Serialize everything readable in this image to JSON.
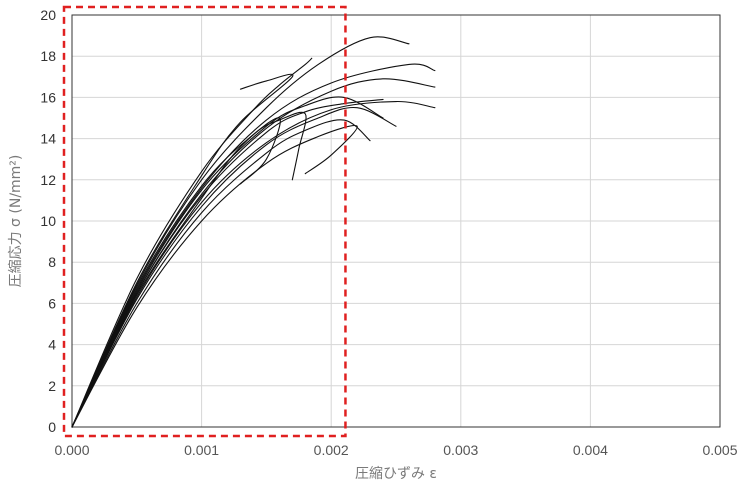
{
  "chart_data": {
    "type": "line",
    "title": "",
    "xlabel": "圧縮ひずみ ε",
    "ylabel": "圧縮応力 σ (N/mm²)",
    "xlim": [
      0,
      0.005
    ],
    "ylim": [
      0,
      20
    ],
    "x_ticks": [
      "0.000",
      "0.001",
      "0.002",
      "0.003",
      "0.004",
      "0.005"
    ],
    "y_ticks": [
      "0",
      "2",
      "4",
      "6",
      "8",
      "10",
      "12",
      "14",
      "16",
      "18",
      "20"
    ],
    "grid": true,
    "legend": "none",
    "highlight_region": {
      "x": [
        0,
        0.00211
      ],
      "y": [
        0,
        20
      ],
      "color": "#e02020",
      "style": "dashed"
    },
    "series": [
      {
        "peak_strain": 0.0018,
        "peak_stress": 17.6,
        "end_strain": 0.00185,
        "end_stress": 17.9,
        "points": [
          [
            0,
            0
          ],
          [
            0.0005,
            7.2
          ],
          [
            0.001,
            12.4
          ],
          [
            0.0014,
            15.4
          ],
          [
            0.0016,
            16.6
          ],
          [
            0.0018,
            17.6
          ],
          [
            0.00185,
            17.9
          ]
        ]
      },
      {
        "peak_strain": 0.0023,
        "peak_stress": 18.9,
        "end_strain": 0.0026,
        "end_stress": 18.6,
        "points": [
          [
            0,
            0
          ],
          [
            0.0005,
            6.9
          ],
          [
            0.001,
            12.0
          ],
          [
            0.0015,
            15.5
          ],
          [
            0.0019,
            17.6
          ],
          [
            0.0023,
            18.9
          ],
          [
            0.0026,
            18.6
          ]
        ]
      },
      {
        "peak_strain": 0.0026,
        "peak_stress": 17.6,
        "end_strain": 0.0028,
        "end_stress": 17.3,
        "points": [
          [
            0,
            0
          ],
          [
            0.0005,
            6.7
          ],
          [
            0.001,
            11.6
          ],
          [
            0.0015,
            14.9
          ],
          [
            0.002,
            16.7
          ],
          [
            0.0026,
            17.6
          ],
          [
            0.0028,
            17.3
          ]
        ]
      },
      {
        "peak_strain": 0.0024,
        "peak_stress": 16.9,
        "end_strain": 0.0028,
        "end_stress": 16.5,
        "points": [
          [
            0,
            0
          ],
          [
            0.0005,
            6.5
          ],
          [
            0.001,
            11.3
          ],
          [
            0.0015,
            14.5
          ],
          [
            0.002,
            16.3
          ],
          [
            0.0024,
            16.9
          ],
          [
            0.0028,
            16.5
          ]
        ]
      },
      {
        "peak_strain": 0.0021,
        "peak_stress": 16.0,
        "end_strain": 0.0024,
        "end_stress": 15.0,
        "points": [
          [
            0,
            0
          ],
          [
            0.0005,
            6.6
          ],
          [
            0.001,
            11.5
          ],
          [
            0.0015,
            14.6
          ],
          [
            0.0018,
            15.6
          ],
          [
            0.0021,
            16.0
          ],
          [
            0.0024,
            15.0
          ]
        ]
      },
      {
        "peak_strain": 0.0025,
        "peak_stress": 15.8,
        "end_strain": 0.0028,
        "end_stress": 15.5,
        "points": [
          [
            0,
            0
          ],
          [
            0.0005,
            6.3
          ],
          [
            0.001,
            10.9
          ],
          [
            0.0015,
            13.8
          ],
          [
            0.002,
            15.4
          ],
          [
            0.0025,
            15.8
          ],
          [
            0.0028,
            15.5
          ]
        ]
      },
      {
        "peak_strain": 0.0022,
        "peak_stress": 15.5,
        "end_strain": 0.0025,
        "end_stress": 14.6,
        "points": [
          [
            0,
            0
          ],
          [
            0.0005,
            6.2
          ],
          [
            0.001,
            10.7
          ],
          [
            0.0015,
            13.7
          ],
          [
            0.0019,
            15.0
          ],
          [
            0.0022,
            15.5
          ],
          [
            0.0025,
            14.6
          ]
        ]
      },
      {
        "peak_strain": 0.0021,
        "peak_stress": 14.9,
        "end_strain": 0.0023,
        "end_stress": 13.9,
        "points": [
          [
            0,
            0
          ],
          [
            0.0005,
            6.0
          ],
          [
            0.001,
            10.4
          ],
          [
            0.0015,
            13.3
          ],
          [
            0.0018,
            14.4
          ],
          [
            0.0021,
            14.9
          ],
          [
            0.0023,
            13.9
          ]
        ]
      },
      {
        "peak_strain": 0.0018,
        "peak_stress": 15.2,
        "end_strain": 0.0017,
        "end_stress": 12.0,
        "points": [
          [
            0,
            0
          ],
          [
            0.0005,
            6.8
          ],
          [
            0.001,
            11.7
          ],
          [
            0.0014,
            14.2
          ],
          [
            0.0016,
            14.9
          ],
          [
            0.0018,
            15.2
          ],
          [
            0.00175,
            13.5
          ],
          [
            0.0017,
            12.0
          ]
        ]
      },
      {
        "peak_strain": 0.0016,
        "peak_stress": 15.0,
        "end_strain": 0.0013,
        "end_stress": 11.8,
        "points": [
          [
            0,
            0
          ],
          [
            0.0005,
            6.4
          ],
          [
            0.001,
            11.1
          ],
          [
            0.0013,
            13.6
          ],
          [
            0.0016,
            15.0
          ],
          [
            0.0015,
            13.0
          ],
          [
            0.0013,
            11.8
          ]
        ]
      },
      {
        "peak_strain": 0.0022,
        "peak_stress": 14.6,
        "end_strain": 0.0018,
        "end_stress": 12.3,
        "points": [
          [
            0,
            0
          ],
          [
            0.0005,
            5.8
          ],
          [
            0.001,
            10.0
          ],
          [
            0.0015,
            12.8
          ],
          [
            0.0019,
            14.1
          ],
          [
            0.0022,
            14.6
          ],
          [
            0.002,
            13.2
          ],
          [
            0.0018,
            12.3
          ]
        ]
      },
      {
        "peak_strain": 0.0017,
        "peak_stress": 17.0,
        "end_strain": 0.0013,
        "end_stress": 16.4,
        "points": [
          [
            0,
            0
          ],
          [
            0.0005,
            7.0
          ],
          [
            0.001,
            12.2
          ],
          [
            0.0013,
            14.8
          ],
          [
            0.0017,
            17.0
          ],
          [
            0.0015,
            16.8
          ],
          [
            0.0013,
            16.4
          ]
        ]
      },
      {
        "peak_strain": 0.0021,
        "peak_stress": 15.7,
        "end_strain": 0.0024,
        "end_stress": 15.9,
        "points": [
          [
            0,
            0
          ],
          [
            0.0005,
            6.5
          ],
          [
            0.001,
            11.2
          ],
          [
            0.0015,
            14.3
          ],
          [
            0.0018,
            15.3
          ],
          [
            0.0021,
            15.7
          ],
          [
            0.0024,
            15.9
          ]
        ]
      }
    ]
  }
}
